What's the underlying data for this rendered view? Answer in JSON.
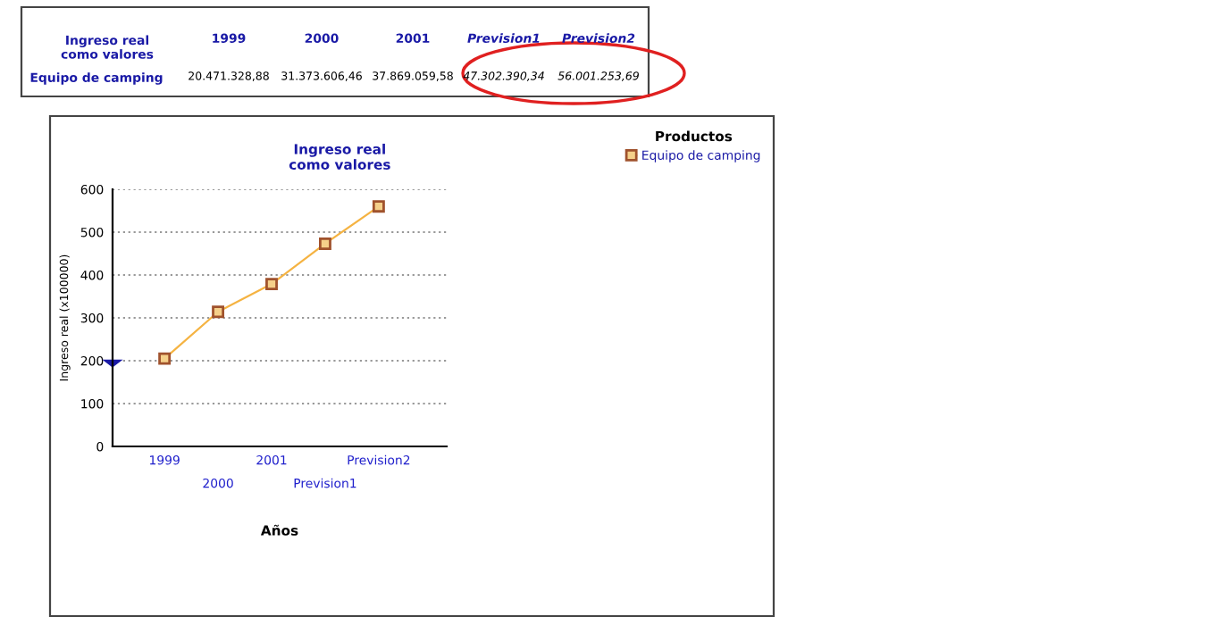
{
  "chart_data": {
    "type": "line",
    "title": "Ingreso real\ncomo valores",
    "xlabel": "Años",
    "ylabel": "Ingreso real (x100000)",
    "legend_title": "Productos",
    "categories": [
      "1999",
      "2000",
      "2001",
      "Prevision1",
      "Prevision2"
    ],
    "series": [
      {
        "name": "Equipo de camping",
        "color": "#f5b342",
        "values": [
          205,
          314,
          379,
          473,
          560
        ]
      }
    ],
    "annotations": [
      "20.471.328,88",
      "31.373.606,46",
      "37.869.059,58",
      "47.302.390,34",
      "56.001.253,69"
    ],
    "ylim": [
      0,
      600
    ],
    "yticks": [
      0,
      100,
      200,
      300,
      400,
      500,
      600
    ],
    "grid": "y",
    "legend": "top right",
    "marker": "square",
    "line_style": "solid"
  }
}
